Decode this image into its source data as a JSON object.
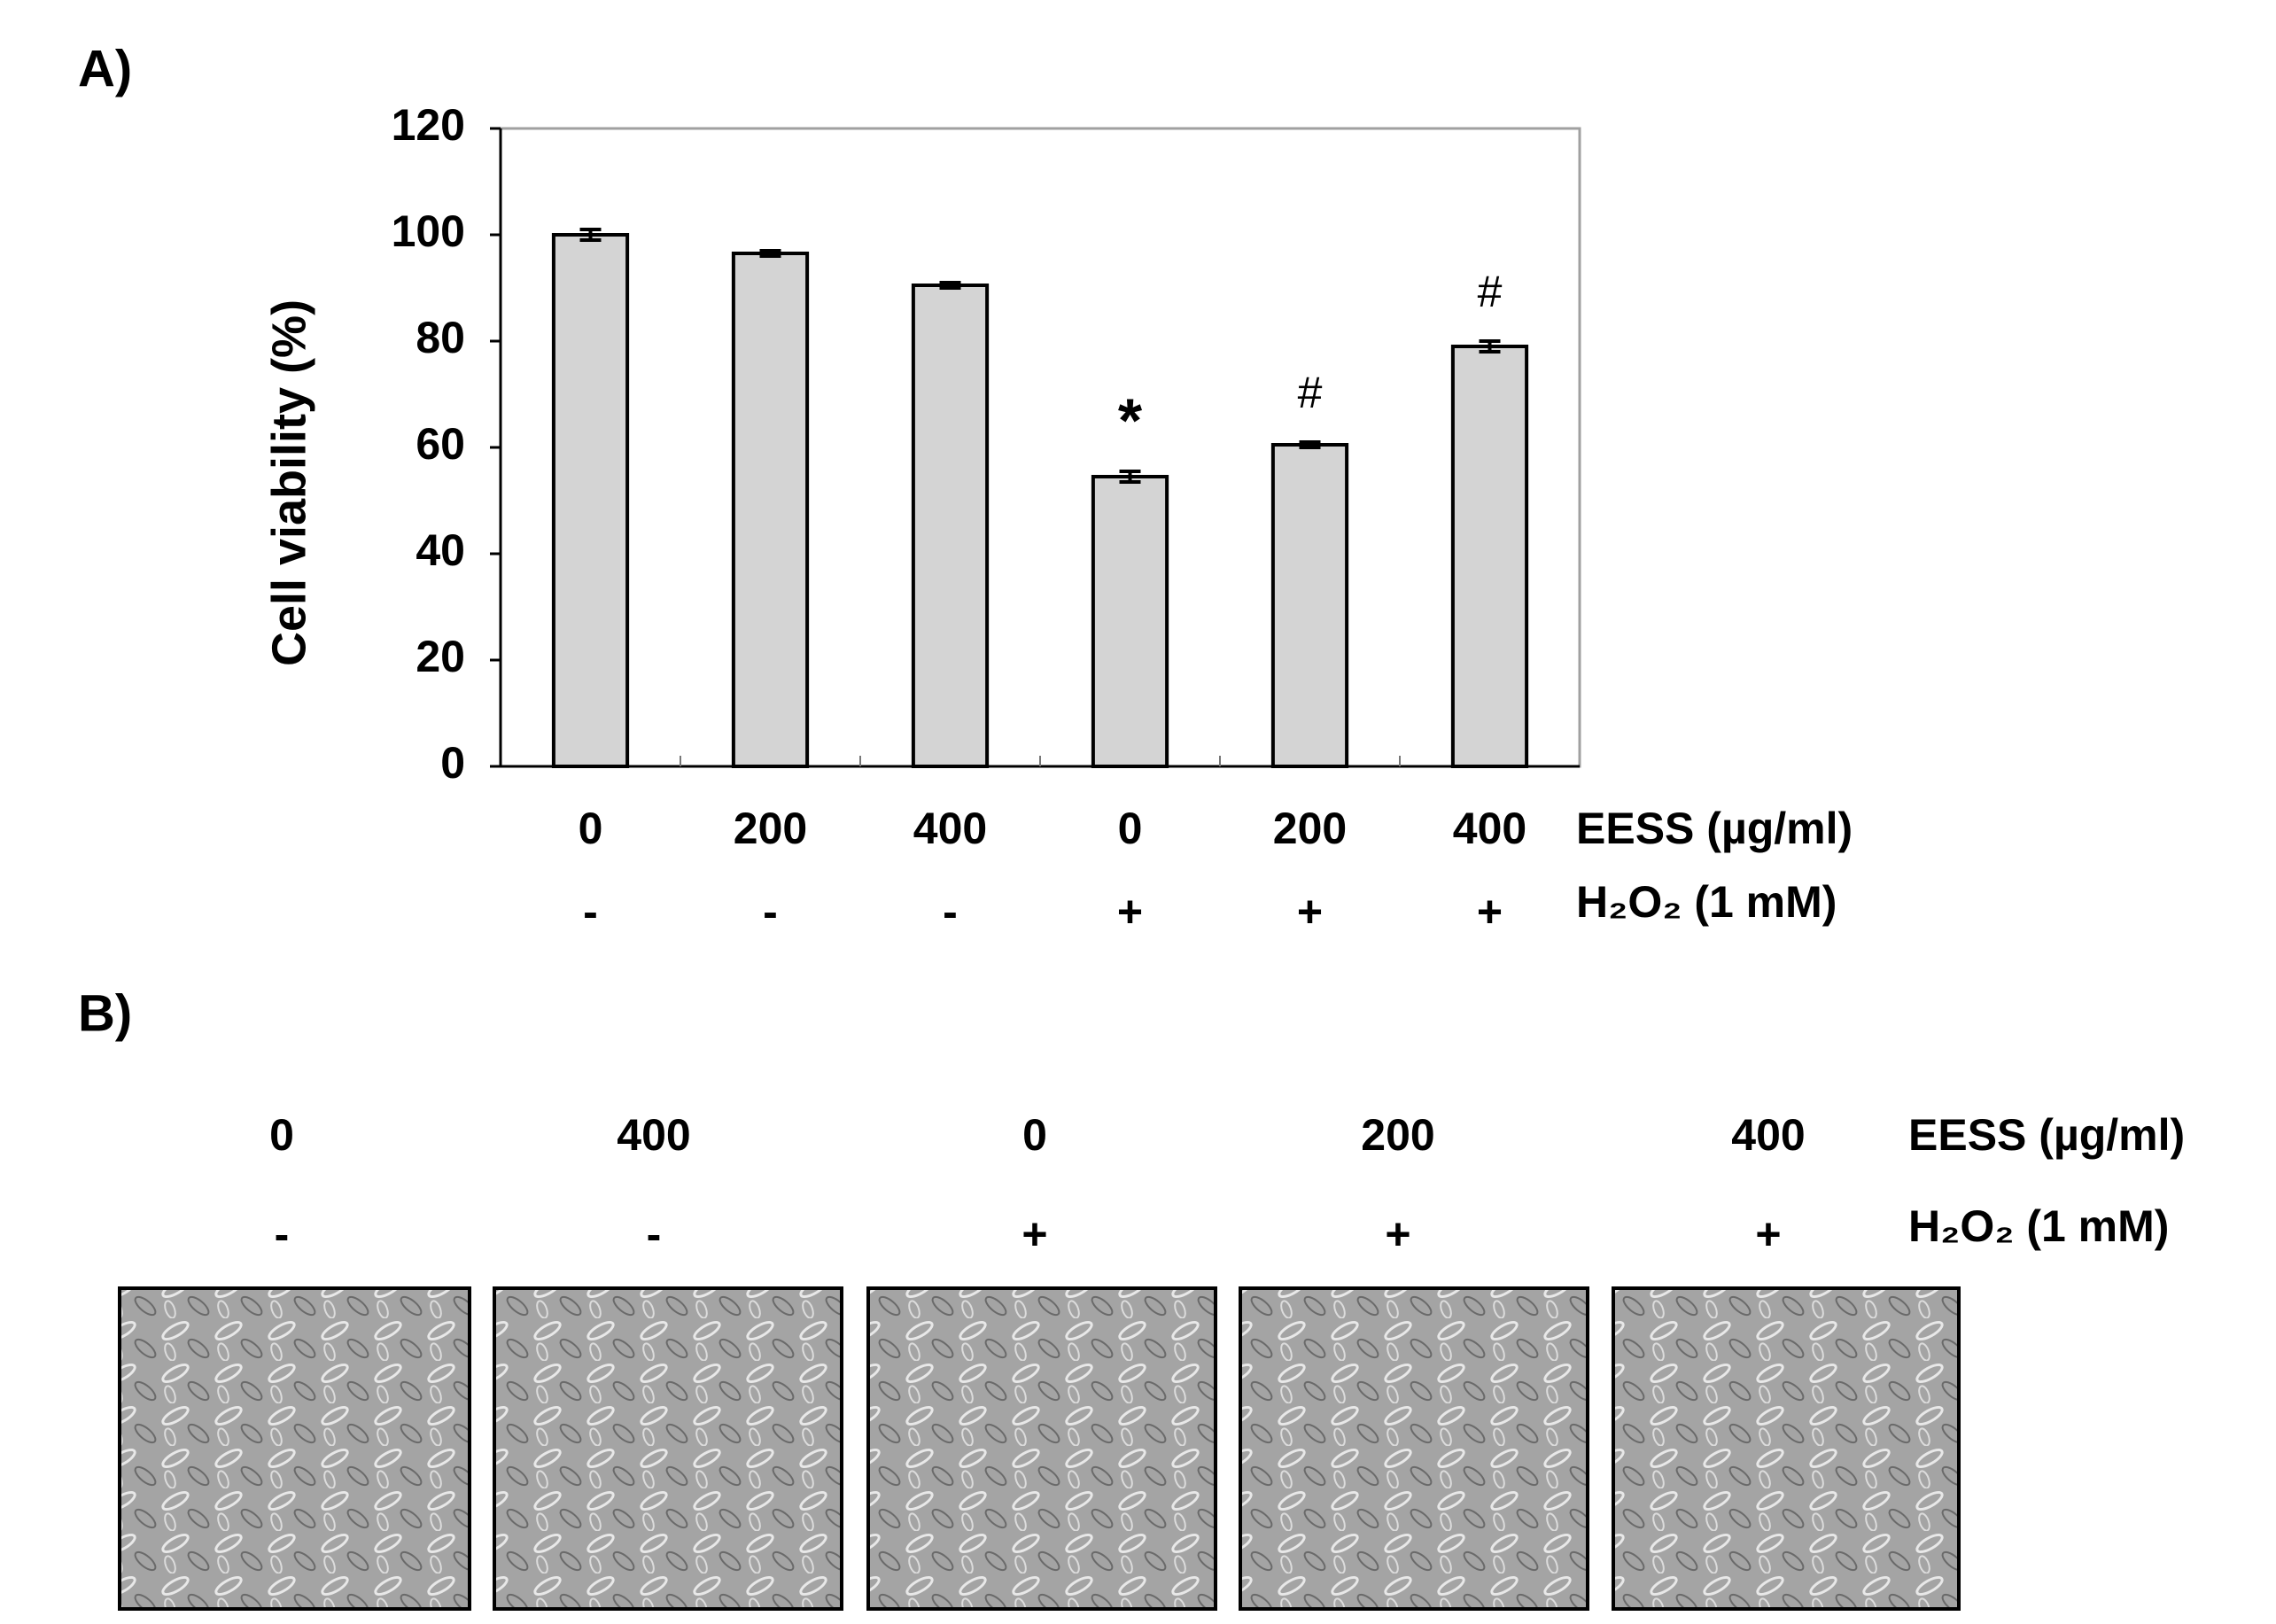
{
  "chart_data": {
    "type": "bar",
    "ylabel": "Cell viability (%)",
    "categories": [
      "0",
      "200",
      "400",
      "0",
      "200",
      "400"
    ],
    "values": [
      100,
      96.5,
      90.5,
      54.5,
      60.5,
      79
    ],
    "errors": [
      1,
      0.5,
      0.5,
      1,
      0.5,
      1
    ],
    "annotations": [
      null,
      null,
      null,
      "*",
      "#",
      "#"
    ],
    "category_axis_label": "EESS (µg/ml)",
    "h2o2": [
      "-",
      "-",
      "-",
      "+",
      "+",
      "+"
    ],
    "h2o2_label": "H₂O₂ (1 mM)",
    "color": "#d4d4d4",
    "ylim": [
      0,
      120
    ],
    "yticks": [
      0,
      20,
      40,
      60,
      80,
      100,
      120
    ],
    "grid": false
  },
  "panels": {
    "a": "A)",
    "b": "B)"
  },
  "micrographs": {
    "eess": [
      "0",
      "400",
      "0",
      "200",
      "400"
    ],
    "eess_label": "EESS (µg/ml)",
    "h2o2": [
      "-",
      "-",
      "+",
      "+",
      "+"
    ],
    "h2o2_label": "H₂O₂ (1 mM)"
  }
}
